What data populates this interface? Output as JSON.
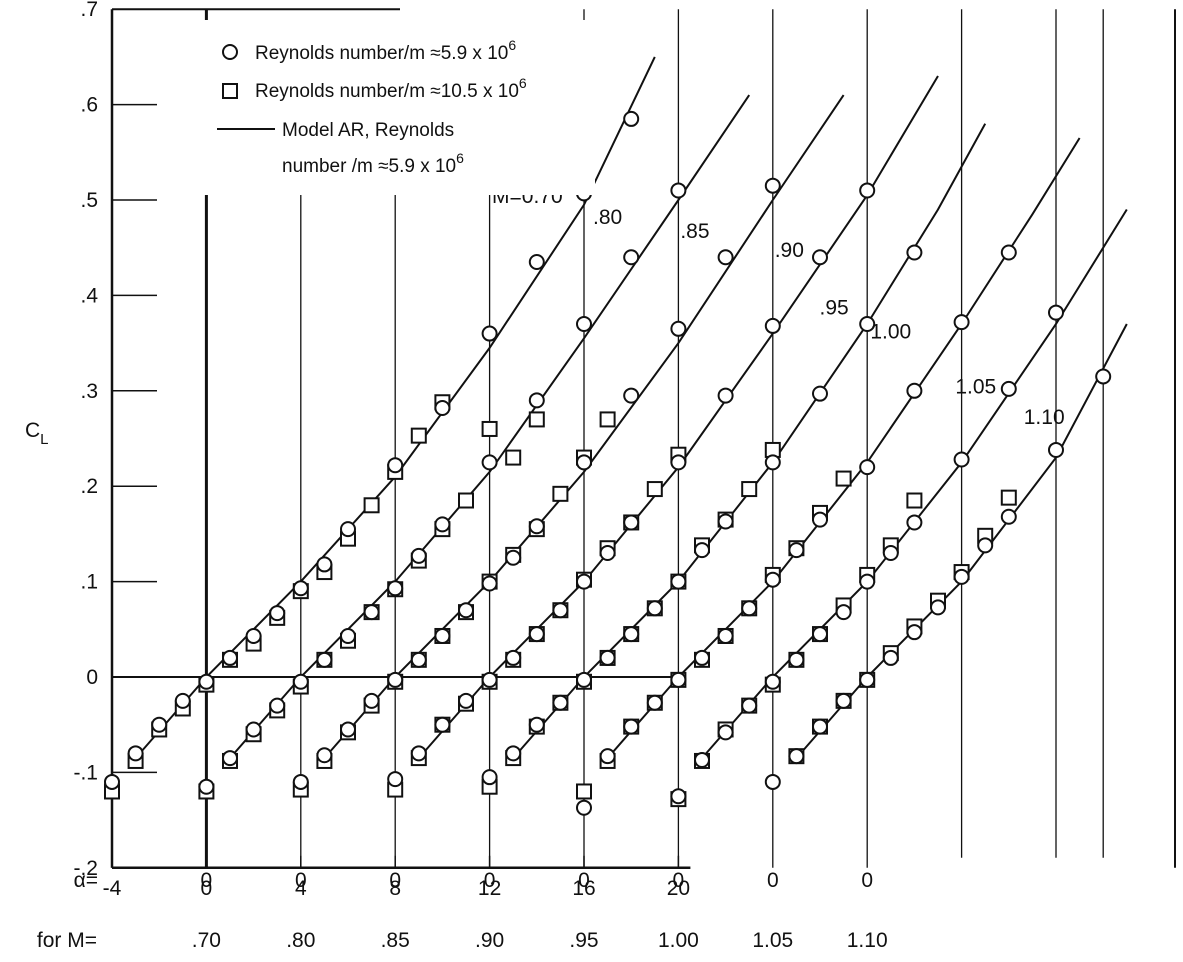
{
  "chart_data": {
    "type": "scatter",
    "ylabel": "C",
    "ylabel_sub": "L",
    "ylim": [
      -0.2,
      0.7
    ],
    "y_tick_labels": [
      "-.2",
      "-.1",
      "0",
      ".1",
      ".2",
      ".3",
      ".4",
      ".5",
      ".6",
      ".7"
    ],
    "x_tick_labels": [
      "-4",
      "0",
      "4",
      "8",
      "12",
      "16",
      "20"
    ],
    "x_ticks_value": [
      -4,
      0,
      4,
      8,
      12,
      16,
      20
    ],
    "xlim": [
      -4,
      40
    ],
    "grid": "vertical lines at each curve's alpha = 0",
    "alpha_row_label": "α=",
    "mach_row_label": "for M=",
    "alpha_zero_label": "0",
    "mach_row_values": [
      ".70",
      ".80",
      ".85",
      ".90",
      ".95",
      "1.00",
      "1.05",
      "1.10"
    ],
    "legend": {
      "position": "top-left",
      "entries": [
        {
          "marker": "circle",
          "label": "Reynolds number/m ≈5.9 x 10",
          "exp": "6"
        },
        {
          "marker": "square",
          "label": "Reynolds number/m ≈10.5 x 10",
          "exp": "6"
        },
        {
          "marker": "line",
          "label": "Model AR, Reynolds",
          "label2": "number /m ≈5.9 x 10",
          "exp": "6"
        }
      ]
    },
    "series": [
      {
        "name": "M=0.70",
        "mach": 0.7,
        "offset": 0,
        "circle_points": [
          [
            -4,
            -0.11
          ],
          [
            -3,
            -0.08
          ],
          [
            -2,
            -0.05
          ],
          [
            -1,
            -0.025
          ],
          [
            0,
            -0.005
          ],
          [
            1,
            0.02
          ],
          [
            2,
            0.043
          ],
          [
            3,
            0.067
          ],
          [
            4,
            0.093
          ],
          [
            5,
            0.118
          ],
          [
            6,
            0.155
          ],
          [
            8,
            0.222
          ],
          [
            10,
            0.282
          ],
          [
            12,
            0.36
          ],
          [
            14,
            0.435
          ],
          [
            16,
            0.507
          ],
          [
            18,
            0.585
          ]
        ],
        "square_points": [
          [
            -4,
            -0.12
          ],
          [
            -3,
            -0.088
          ],
          [
            -2,
            -0.055
          ],
          [
            -1,
            -0.033
          ],
          [
            0,
            -0.008
          ],
          [
            1,
            0.018
          ],
          [
            2,
            0.035
          ],
          [
            3,
            0.062
          ],
          [
            4,
            0.09
          ],
          [
            5,
            0.11
          ],
          [
            6,
            0.145
          ],
          [
            7,
            0.18
          ],
          [
            8,
            0.215
          ],
          [
            9,
            0.253
          ],
          [
            10,
            0.288
          ]
        ],
        "fit_line": [
          [
            -3,
            -0.085
          ],
          [
            0,
            0
          ],
          [
            4,
            0.1
          ],
          [
            8,
            0.21
          ],
          [
            12,
            0.345
          ],
          [
            16,
            0.495
          ],
          [
            19,
            0.65
          ]
        ]
      },
      {
        "name": ".80",
        "mach": 0.8,
        "offset": 0,
        "circle_points": [
          [
            0,
            -0.115
          ],
          [
            1,
            -0.085
          ],
          [
            2,
            -0.055
          ],
          [
            3,
            -0.03
          ],
          [
            4,
            -0.005
          ],
          [
            5,
            0.018
          ],
          [
            6,
            0.043
          ],
          [
            7,
            0.068
          ],
          [
            8,
            0.093
          ],
          [
            9,
            0.127
          ],
          [
            10,
            0.16
          ],
          [
            12,
            0.225
          ],
          [
            14,
            0.29
          ],
          [
            16,
            0.37
          ],
          [
            18,
            0.44
          ],
          [
            20,
            0.51
          ]
        ],
        "square_points": [
          [
            0,
            -0.12
          ],
          [
            1,
            -0.088
          ],
          [
            2,
            -0.06
          ],
          [
            3,
            -0.035
          ],
          [
            4,
            -0.01
          ],
          [
            5,
            0.018
          ],
          [
            6,
            0.038
          ],
          [
            7,
            0.068
          ],
          [
            8,
            0.092
          ],
          [
            9,
            0.122
          ],
          [
            10,
            0.155
          ],
          [
            11,
            0.185
          ],
          [
            12,
            0.26
          ],
          [
            13,
            0.23
          ],
          [
            14,
            0.27
          ]
        ],
        "fit_line": [
          [
            1,
            -0.085
          ],
          [
            4,
            0
          ],
          [
            8,
            0.1
          ],
          [
            12,
            0.215
          ],
          [
            16,
            0.355
          ],
          [
            20,
            0.5
          ],
          [
            23,
            0.61
          ]
        ]
      },
      {
        "name": ".85",
        "mach": 0.85,
        "offset": 0,
        "circle_points": [
          [
            4,
            -0.11
          ],
          [
            5,
            -0.082
          ],
          [
            6,
            -0.055
          ],
          [
            7,
            -0.025
          ],
          [
            8,
            -0.003
          ],
          [
            9,
            0.018
          ],
          [
            10,
            0.043
          ],
          [
            11,
            0.07
          ],
          [
            12,
            0.098
          ],
          [
            13,
            0.125
          ],
          [
            14,
            0.158
          ],
          [
            16,
            0.225
          ],
          [
            18,
            0.295
          ],
          [
            20,
            0.365
          ],
          [
            22,
            0.44
          ],
          [
            24,
            0.515
          ]
        ],
        "square_points": [
          [
            4,
            -0.118
          ],
          [
            5,
            -0.088
          ],
          [
            6,
            -0.058
          ],
          [
            7,
            -0.03
          ],
          [
            8,
            -0.005
          ],
          [
            9,
            0.018
          ],
          [
            10,
            0.043
          ],
          [
            11,
            0.068
          ],
          [
            12,
            0.1
          ],
          [
            13,
            0.128
          ],
          [
            14,
            0.155
          ],
          [
            15,
            0.192
          ],
          [
            16,
            0.23
          ],
          [
            17,
            0.27
          ]
        ],
        "fit_line": [
          [
            5,
            -0.085
          ],
          [
            8,
            0
          ],
          [
            12,
            0.1
          ],
          [
            16,
            0.215
          ],
          [
            20,
            0.35
          ],
          [
            24,
            0.5
          ],
          [
            27,
            0.61
          ]
        ]
      },
      {
        "name": ".90",
        "mach": 0.9,
        "offset": 0,
        "circle_points": [
          [
            8,
            -0.107
          ],
          [
            9,
            -0.08
          ],
          [
            10,
            -0.05
          ],
          [
            11,
            -0.025
          ],
          [
            12,
            -0.003
          ],
          [
            13,
            0.02
          ],
          [
            14,
            0.045
          ],
          [
            15,
            0.07
          ],
          [
            16,
            0.1
          ],
          [
            17,
            0.13
          ],
          [
            18,
            0.162
          ],
          [
            20,
            0.225
          ],
          [
            22,
            0.295
          ],
          [
            24,
            0.368
          ],
          [
            26,
            0.44
          ],
          [
            28,
            0.51
          ]
        ],
        "square_points": [
          [
            8,
            -0.118
          ],
          [
            9,
            -0.085
          ],
          [
            10,
            -0.05
          ],
          [
            11,
            -0.028
          ],
          [
            12,
            -0.005
          ],
          [
            13,
            0.018
          ],
          [
            14,
            0.045
          ],
          [
            15,
            0.07
          ],
          [
            16,
            0.102
          ],
          [
            17,
            0.135
          ],
          [
            18,
            0.162
          ],
          [
            19,
            0.197
          ],
          [
            20,
            0.233
          ]
        ],
        "fit_line": [
          [
            9,
            -0.085
          ],
          [
            12,
            0
          ],
          [
            16,
            0.1
          ],
          [
            20,
            0.22
          ],
          [
            24,
            0.36
          ],
          [
            28,
            0.505
          ],
          [
            31,
            0.63
          ]
        ]
      },
      {
        "name": ".95",
        "mach": 0.95,
        "offset": 0,
        "circle_points": [
          [
            12,
            -0.105
          ],
          [
            13,
            -0.08
          ],
          [
            14,
            -0.05
          ],
          [
            15,
            -0.027
          ],
          [
            16,
            -0.003
          ],
          [
            17,
            0.02
          ],
          [
            18,
            0.045
          ],
          [
            19,
            0.072
          ],
          [
            20,
            0.1
          ],
          [
            21,
            0.133
          ],
          [
            22,
            0.163
          ],
          [
            24,
            0.225
          ],
          [
            26,
            0.297
          ],
          [
            28,
            0.37
          ],
          [
            30,
            0.445
          ]
        ],
        "square_points": [
          [
            12,
            -0.115
          ],
          [
            13,
            -0.085
          ],
          [
            14,
            -0.052
          ],
          [
            15,
            -0.027
          ],
          [
            16,
            -0.005
          ],
          [
            17,
            0.02
          ],
          [
            18,
            0.045
          ],
          [
            19,
            0.072
          ],
          [
            20,
            0.1
          ],
          [
            21,
            0.138
          ],
          [
            22,
            0.165
          ],
          [
            23,
            0.197
          ],
          [
            24,
            0.238
          ]
        ],
        "fit_line": [
          [
            13,
            -0.085
          ],
          [
            16,
            0
          ],
          [
            20,
            0.1
          ],
          [
            24,
            0.225
          ],
          [
            28,
            0.37
          ],
          [
            31,
            0.49
          ],
          [
            33,
            0.58
          ]
        ]
      },
      {
        "name": "1.00",
        "mach": 1.0,
        "offset": 0,
        "circle_points": [
          [
            16,
            -0.137
          ],
          [
            17,
            -0.083
          ],
          [
            18,
            -0.052
          ],
          [
            19,
            -0.027
          ],
          [
            20,
            -0.003
          ],
          [
            21,
            0.02
          ],
          [
            22,
            0.043
          ],
          [
            23,
            0.072
          ],
          [
            24,
            0.102
          ],
          [
            25,
            0.133
          ],
          [
            26,
            0.165
          ],
          [
            28,
            0.22
          ],
          [
            30,
            0.3
          ],
          [
            32,
            0.372
          ],
          [
            34,
            0.445
          ]
        ],
        "square_points": [
          [
            16,
            -0.12
          ],
          [
            17,
            -0.088
          ],
          [
            18,
            -0.052
          ],
          [
            19,
            -0.027
          ],
          [
            20,
            -0.003
          ],
          [
            21,
            0.018
          ],
          [
            22,
            0.043
          ],
          [
            23,
            0.072
          ],
          [
            24,
            0.107
          ],
          [
            25,
            0.135
          ],
          [
            26,
            0.172
          ],
          [
            27,
            0.208
          ]
        ],
        "fit_line": [
          [
            17,
            -0.085
          ],
          [
            20,
            0
          ],
          [
            24,
            0.1
          ],
          [
            28,
            0.225
          ],
          [
            32,
            0.37
          ],
          [
            35,
            0.485
          ],
          [
            37,
            0.565
          ]
        ]
      },
      {
        "name": "1.05",
        "mach": 1.05,
        "offset": 0,
        "circle_points": [
          [
            20,
            -0.125
          ],
          [
            21,
            -0.087
          ],
          [
            22,
            -0.058
          ],
          [
            23,
            -0.03
          ],
          [
            24,
            -0.005
          ],
          [
            25,
            0.018
          ],
          [
            26,
            0.045
          ],
          [
            27,
            0.068
          ],
          [
            28,
            0.1
          ],
          [
            29,
            0.13
          ],
          [
            30,
            0.162
          ],
          [
            32,
            0.228
          ],
          [
            34,
            0.302
          ],
          [
            36,
            0.382
          ]
        ],
        "square_points": [
          [
            20,
            -0.128
          ],
          [
            21,
            -0.088
          ],
          [
            22,
            -0.055
          ],
          [
            23,
            -0.03
          ],
          [
            24,
            -0.008
          ],
          [
            25,
            0.018
          ],
          [
            26,
            0.045
          ],
          [
            27,
            0.075
          ],
          [
            28,
            0.107
          ],
          [
            29,
            0.138
          ],
          [
            30,
            0.185
          ]
        ],
        "fit_line": [
          [
            21,
            -0.085
          ],
          [
            24,
            0
          ],
          [
            28,
            0.1
          ],
          [
            32,
            0.225
          ],
          [
            36,
            0.37
          ],
          [
            39,
            0.49
          ]
        ]
      },
      {
        "name": "1.10",
        "mach": 1.1,
        "offset": 0,
        "circle_points": [
          [
            24,
            -0.11
          ],
          [
            25,
            -0.083
          ],
          [
            26,
            -0.052
          ],
          [
            27,
            -0.025
          ],
          [
            28,
            -0.003
          ],
          [
            29,
            0.02
          ],
          [
            30,
            0.047
          ],
          [
            31,
            0.073
          ],
          [
            32,
            0.105
          ],
          [
            33,
            0.138
          ],
          [
            34,
            0.168
          ],
          [
            36,
            0.238
          ],
          [
            38,
            0.315
          ]
        ],
        "square_points": [
          [
            25,
            -0.083
          ],
          [
            26,
            -0.052
          ],
          [
            27,
            -0.025
          ],
          [
            28,
            -0.003
          ],
          [
            29,
            0.025
          ],
          [
            30,
            0.053
          ],
          [
            31,
            0.08
          ],
          [
            32,
            0.11
          ],
          [
            33,
            0.148
          ],
          [
            34,
            0.188
          ]
        ],
        "fit_line": [
          [
            25,
            -0.085
          ],
          [
            28,
            0
          ],
          [
            32,
            0.1
          ],
          [
            36,
            0.23
          ],
          [
            39,
            0.37
          ]
        ]
      }
    ],
    "curve_labels": [
      "M=0.70",
      ".80",
      ".85",
      ".90",
      ".95",
      "1.00",
      "1.05",
      "1.10"
    ]
  }
}
